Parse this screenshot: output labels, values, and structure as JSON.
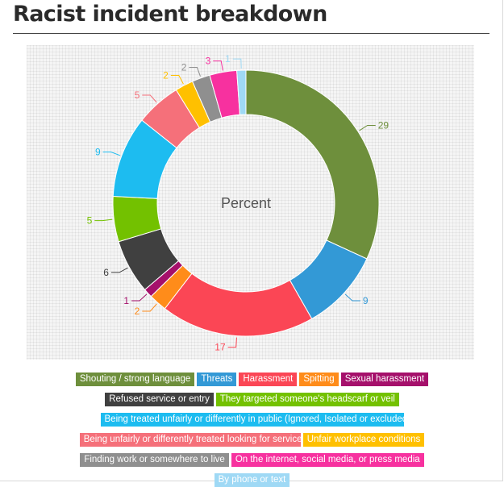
{
  "title": "Racist incident breakdown",
  "chart_data": {
    "type": "pie",
    "donut": true,
    "center_label": "Percent",
    "categories": [
      "Shouting / strong language",
      "Threats",
      "Harassment",
      "Spitting",
      "Sexual harassment",
      "Refused service or entry",
      "They targeted someone's headscarf or veil",
      "Being treated unfairly or differently in public (Ignored, Isolated or excluded)",
      "Being unfairly or differently treated looking for service",
      "Unfair workplace conditions",
      "Finding work or somewhere to live",
      "On the internet, social media, or press media",
      "By phone or text"
    ],
    "values": [
      29,
      9,
      17,
      2,
      1,
      6,
      5,
      9,
      5,
      2,
      2,
      3,
      1
    ],
    "colors": [
      "#6e8f3c",
      "#3399d6",
      "#fb4655",
      "#ff8c1a",
      "#a5106b",
      "#404040",
      "#73c100",
      "#1dbcf0",
      "#f5707a",
      "#ffc000",
      "#8f8f8f",
      "#f7319f",
      "#9fd9f5"
    ],
    "legend_placement": "bottom",
    "grid": false
  },
  "legend": {
    "rows": [
      [
        0,
        1,
        2,
        3,
        4
      ],
      [
        5,
        6
      ],
      [
        7
      ],
      [
        8,
        9
      ],
      [
        10,
        11
      ],
      [
        12
      ]
    ]
  }
}
